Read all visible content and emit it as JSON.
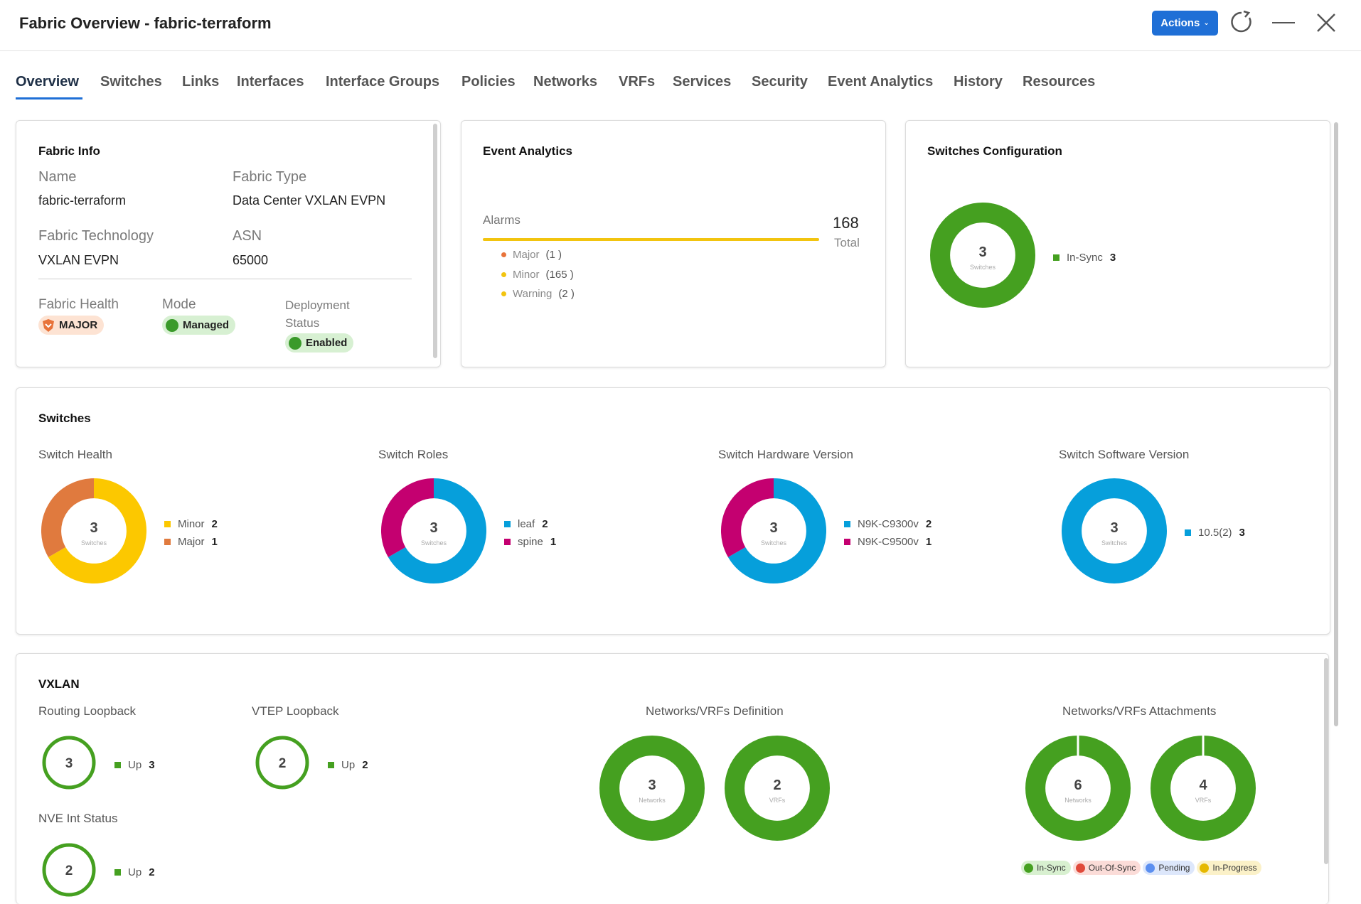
{
  "header": {
    "title": "Fabric Overview - fabric-terraform",
    "actions_label": "Actions",
    "actions_chevron": "⌄"
  },
  "tabs": [
    {
      "label": "Overview",
      "active": true
    },
    {
      "label": "Switches"
    },
    {
      "label": "Links"
    },
    {
      "label": "Interfaces"
    },
    {
      "label": "Interface Groups"
    },
    {
      "label": "Policies"
    },
    {
      "label": "Networks"
    },
    {
      "label": "VRFs"
    },
    {
      "label": "Services"
    },
    {
      "label": "Security"
    },
    {
      "label": "Event Analytics"
    },
    {
      "label": "History"
    },
    {
      "label": "Resources"
    }
  ],
  "fabric_info": {
    "title": "Fabric Info",
    "name_label": "Name",
    "name_value": "fabric-terraform",
    "type_label": "Fabric Type",
    "type_value": "Data Center VXLAN EVPN",
    "tech_label": "Fabric Technology",
    "tech_value": "VXLAN EVPN",
    "asn_label": "ASN",
    "asn_value": "65000",
    "health_label": "Fabric Health",
    "health_value": "MAJOR",
    "mode_label": "Mode",
    "mode_value": "Managed",
    "deploy_label_1": "Deployment",
    "deploy_label_2": "Status",
    "deploy_value": "Enabled"
  },
  "event_analytics": {
    "title": "Event Analytics",
    "alarms_label": "Alarms",
    "total_value": "168",
    "total_label": "Total",
    "items": [
      {
        "label": "Major",
        "count": "(1 )",
        "color": "#e8733a"
      },
      {
        "label": "Minor",
        "count": "(165 )",
        "color": "#f2c40f"
      },
      {
        "label": "Warning",
        "count": "(2 )",
        "color": "#f2c40f"
      }
    ]
  },
  "switches_config": {
    "title": "Switches Configuration",
    "center_value": "3",
    "center_label": "Switches",
    "legend": [
      {
        "label": "In-Sync",
        "value": "3",
        "color": "#45a020"
      }
    ]
  },
  "switches": {
    "title": "Switches",
    "charts": [
      {
        "title": "Switch Health",
        "center_value": "3",
        "center_label": "Switches",
        "segments": [
          {
            "label": "Minor",
            "value": 2,
            "color": "#fcc800"
          },
          {
            "label": "Major",
            "value": 1,
            "color": "#e07a3e"
          }
        ]
      },
      {
        "title": "Switch Roles",
        "center_value": "3",
        "center_label": "Switches",
        "segments": [
          {
            "label": "leaf",
            "value": 2,
            "color": "#069fdb"
          },
          {
            "label": "spine",
            "value": 1,
            "color": "#c40070"
          }
        ]
      },
      {
        "title": "Switch Hardware Version",
        "center_value": "3",
        "center_label": "Switches",
        "segments": [
          {
            "label": "N9K-C9300v",
            "value": 2,
            "color": "#069fdb"
          },
          {
            "label": "N9K-C9500v",
            "value": 1,
            "color": "#c40070"
          }
        ]
      },
      {
        "title": "Switch Software Version",
        "center_value": "3",
        "center_label": "Switches",
        "segments": [
          {
            "label": "10.5(2)",
            "value": 3,
            "color": "#069fdb"
          }
        ]
      }
    ]
  },
  "vxlan": {
    "title": "VXLAN",
    "routing_loopback": {
      "title": "Routing Loopback",
      "value": "3",
      "legend_label": "Up",
      "legend_value": "3"
    },
    "vtep_loopback": {
      "title": "VTEP Loopback",
      "value": "2",
      "legend_label": "Up",
      "legend_value": "2"
    },
    "nve_status": {
      "title": "NVE Int Status",
      "value": "2",
      "legend_label": "Up",
      "legend_value": "2"
    },
    "definition": {
      "title": "Networks/VRFs Definition",
      "networks": {
        "value": "3",
        "label": "Networks"
      },
      "vrfs": {
        "value": "2",
        "label": "VRFs"
      }
    },
    "attachments": {
      "title": "Networks/VRFs Attachments",
      "networks": {
        "value": "6",
        "label": "Networks"
      },
      "vrfs": {
        "value": "4",
        "label": "VRFs"
      }
    },
    "status_legend": [
      {
        "label": "In-Sync",
        "color": "#45a020",
        "bg": "#d8f0d0"
      },
      {
        "label": "Out-Of-Sync",
        "color": "#e04a3b",
        "bg": "#fbdcd8"
      },
      {
        "label": "Pending",
        "color": "#5b8ff0",
        "bg": "#dde7fb"
      },
      {
        "label": "In-Progress",
        "color": "#e6b800",
        "bg": "#fbf1c8"
      }
    ]
  }
}
